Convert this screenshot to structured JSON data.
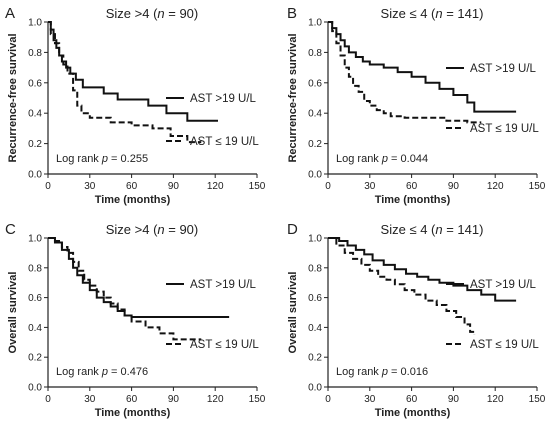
{
  "chart_data": [
    {
      "type": "line",
      "panel_letter": "A",
      "title": "Size >4 (n = 90)",
      "title_parts": [
        "Size >4 (",
        "n",
        " = 90)"
      ],
      "xlabel": "Time (months)",
      "ylabel": "Recurrence-free survival",
      "xlim": [
        0,
        150
      ],
      "ylim": [
        0,
        1.0
      ],
      "xticks": [
        0,
        30,
        60,
        90,
        120,
        150
      ],
      "yticks": [
        0,
        0.2,
        0.4,
        0.6,
        0.8,
        1.0
      ],
      "annotation": "Log rank p = 0.255",
      "annotation_parts": [
        "Log rank ",
        "p",
        " = 0.255"
      ],
      "series": [
        {
          "name": "AST >19 U/L",
          "style": "solid",
          "x": [
            0,
            2,
            4,
            6,
            8,
            10,
            13,
            16,
            20,
            25,
            30,
            40,
            50,
            60,
            72,
            85,
            100,
            122
          ],
          "y": [
            1.0,
            0.95,
            0.88,
            0.83,
            0.78,
            0.74,
            0.7,
            0.66,
            0.62,
            0.57,
            0.57,
            0.53,
            0.49,
            0.49,
            0.45,
            0.4,
            0.35,
            0.35
          ]
        },
        {
          "name": "AST ≤ 19 U/L",
          "style": "dashed",
          "x": [
            0,
            2,
            5,
            8,
            11,
            14,
            18,
            21,
            24,
            30,
            45,
            60,
            75,
            88,
            100,
            110
          ],
          "y": [
            1.0,
            0.92,
            0.86,
            0.78,
            0.72,
            0.66,
            0.55,
            0.45,
            0.4,
            0.37,
            0.34,
            0.32,
            0.3,
            0.25,
            0.21,
            0.21
          ]
        }
      ]
    },
    {
      "type": "line",
      "panel_letter": "B",
      "title": "Size ≤ 4 (n = 141)",
      "title_parts": [
        "Size ≤ 4 (",
        "n",
        " = 141)"
      ],
      "xlabel": "Time (months)",
      "ylabel": "Recurrence-free survival",
      "xlim": [
        0,
        150
      ],
      "ylim": [
        0,
        1.0
      ],
      "xticks": [
        0,
        30,
        60,
        90,
        120,
        150
      ],
      "yticks": [
        0,
        0.2,
        0.4,
        0.6,
        0.8,
        1.0
      ],
      "annotation": "Log rank p = 0.044",
      "annotation_parts": [
        "Log rank ",
        "p",
        " = 0.044"
      ],
      "series": [
        {
          "name": "AST >19 U/L",
          "style": "solid",
          "x": [
            0,
            3,
            6,
            9,
            12,
            15,
            20,
            25,
            30,
            40,
            50,
            60,
            70,
            80,
            90,
            100,
            105,
            135
          ],
          "y": [
            1.0,
            0.96,
            0.92,
            0.88,
            0.84,
            0.8,
            0.77,
            0.74,
            0.72,
            0.7,
            0.67,
            0.64,
            0.6,
            0.56,
            0.52,
            0.47,
            0.41,
            0.41
          ]
        },
        {
          "name": "AST ≤ 19 U/L",
          "style": "dashed",
          "x": [
            0,
            3,
            6,
            9,
            12,
            15,
            18,
            22,
            26,
            30,
            35,
            40,
            45,
            55,
            70,
            85,
            100,
            110
          ],
          "y": [
            1.0,
            0.94,
            0.86,
            0.78,
            0.7,
            0.64,
            0.58,
            0.54,
            0.48,
            0.45,
            0.42,
            0.4,
            0.38,
            0.37,
            0.37,
            0.35,
            0.34,
            0.34
          ]
        }
      ]
    },
    {
      "type": "line",
      "panel_letter": "C",
      "title": "Size >4 (n = 90)",
      "title_parts": [
        "Size >4 (",
        "n",
        " = 90)"
      ],
      "xlabel": "Time (months)",
      "ylabel": "Overall survival",
      "xlim": [
        0,
        150
      ],
      "ylim": [
        0,
        1.0
      ],
      "xticks": [
        0,
        30,
        60,
        90,
        120,
        150
      ],
      "yticks": [
        0,
        0.2,
        0.4,
        0.6,
        0.8,
        1.0
      ],
      "annotation": "Log rank p = 0.476",
      "annotation_parts": [
        "Log rank ",
        "p",
        " = 0.476"
      ],
      "series": [
        {
          "name": "AST >19 U/L",
          "style": "solid",
          "x": [
            0,
            5,
            10,
            15,
            18,
            21,
            25,
            30,
            35,
            40,
            45,
            50,
            55,
            60,
            70,
            130
          ],
          "y": [
            1.0,
            0.97,
            0.92,
            0.86,
            0.8,
            0.75,
            0.7,
            0.65,
            0.6,
            0.57,
            0.54,
            0.51,
            0.48,
            0.47,
            0.47,
            0.47
          ]
        },
        {
          "name": "AST ≤ 19 U/L",
          "style": "dashed",
          "x": [
            0,
            5,
            10,
            14,
            18,
            22,
            26,
            30,
            35,
            40,
            45,
            50,
            55,
            60,
            70,
            80,
            90,
            110
          ],
          "y": [
            1.0,
            0.98,
            0.94,
            0.9,
            0.84,
            0.78,
            0.72,
            0.68,
            0.64,
            0.6,
            0.56,
            0.52,
            0.48,
            0.44,
            0.4,
            0.36,
            0.32,
            0.32
          ]
        }
      ]
    },
    {
      "type": "line",
      "panel_letter": "D",
      "title": "Size ≤ 4 (n = 141)",
      "title_parts": [
        "Size ≤ 4 (",
        "n",
        " = 141)"
      ],
      "xlabel": "Time (months)",
      "ylabel": "Overall survival",
      "xlim": [
        0,
        150
      ],
      "ylim": [
        0,
        1.0
      ],
      "xticks": [
        0,
        30,
        60,
        90,
        120,
        150
      ],
      "yticks": [
        0,
        0.2,
        0.4,
        0.6,
        0.8,
        1.0
      ],
      "annotation": "Log rank p = 0.016",
      "annotation_parts": [
        "Log rank ",
        "p",
        " = 0.016"
      ],
      "series": [
        {
          "name": "AST >19 U/L",
          "style": "solid",
          "x": [
            0,
            8,
            14,
            20,
            26,
            32,
            40,
            48,
            56,
            64,
            72,
            80,
            90,
            100,
            110,
            120,
            135
          ],
          "y": [
            1.0,
            0.98,
            0.95,
            0.92,
            0.89,
            0.85,
            0.82,
            0.79,
            0.76,
            0.74,
            0.72,
            0.7,
            0.68,
            0.65,
            0.62,
            0.58,
            0.58
          ]
        },
        {
          "name": "AST ≤ 19 U/L",
          "style": "dashed",
          "x": [
            0,
            6,
            12,
            18,
            24,
            30,
            36,
            42,
            48,
            55,
            62,
            70,
            78,
            85,
            92,
            98,
            102,
            105
          ],
          "y": [
            1.0,
            0.95,
            0.9,
            0.86,
            0.82,
            0.78,
            0.74,
            0.72,
            0.69,
            0.65,
            0.62,
            0.58,
            0.55,
            0.51,
            0.47,
            0.42,
            0.37,
            0.35
          ]
        }
      ]
    }
  ],
  "layout_hints": {
    "legend_position": "right",
    "grid": false,
    "line_color": "#111111",
    "axis_color": "#222222"
  }
}
